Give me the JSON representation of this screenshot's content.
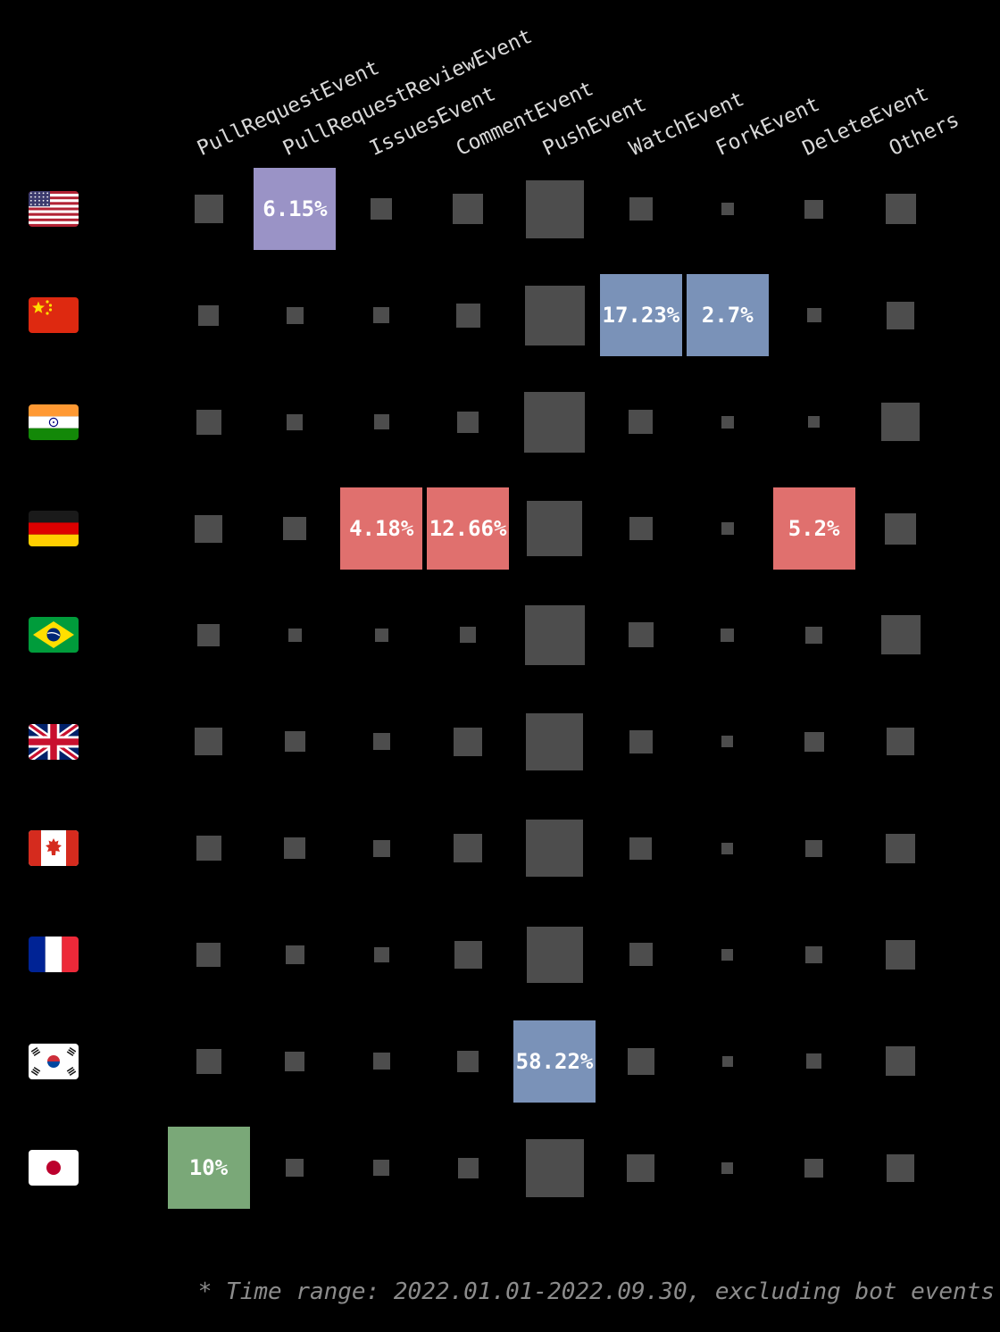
{
  "chart_data": {
    "type": "heatmap",
    "title": "",
    "columns": [
      "PullRequestEvent",
      "PullRequestReviewEvent",
      "IssuesEvent",
      "CommentEvent",
      "PushEvent",
      "WatchEvent",
      "ForkEvent",
      "DeleteEvent",
      "Others"
    ],
    "rows": [
      {
        "country": "United States",
        "flag": "us"
      },
      {
        "country": "China",
        "flag": "cn"
      },
      {
        "country": "India",
        "flag": "in"
      },
      {
        "country": "Germany",
        "flag": "de"
      },
      {
        "country": "Brazil",
        "flag": "br"
      },
      {
        "country": "United Kingdom",
        "flag": "gb"
      },
      {
        "country": "Canada",
        "flag": "ca"
      },
      {
        "country": "France",
        "flag": "fr"
      },
      {
        "country": "South Korea",
        "flag": "kr"
      },
      {
        "country": "Japan",
        "flag": "jp"
      }
    ],
    "cells": [
      [
        {
          "size": 32
        },
        {
          "pct": "6.15%",
          "color": "purple"
        },
        {
          "size": 24
        },
        {
          "size": 34
        },
        {
          "size": 65
        },
        {
          "size": 26
        },
        {
          "size": 14
        },
        {
          "size": 21
        },
        {
          "size": 34
        }
      ],
      [
        {
          "size": 23
        },
        {
          "size": 19
        },
        {
          "size": 18
        },
        {
          "size": 27
        },
        {
          "size": 67
        },
        {
          "pct": "17.23%",
          "color": "blue"
        },
        {
          "pct": "2.7%",
          "color": "blue"
        },
        {
          "size": 16
        },
        {
          "size": 31
        }
      ],
      [
        {
          "size": 28
        },
        {
          "size": 18
        },
        {
          "size": 17
        },
        {
          "size": 24
        },
        {
          "size": 68
        },
        {
          "size": 27
        },
        {
          "size": 14
        },
        {
          "size": 13
        },
        {
          "size": 43
        }
      ],
      [
        {
          "size": 31
        },
        {
          "size": 26
        },
        {
          "pct": "4.18%",
          "color": "red"
        },
        {
          "pct": "12.66%",
          "color": "red"
        },
        {
          "size": 62
        },
        {
          "size": 26
        },
        {
          "size": 14
        },
        {
          "pct": "5.2%",
          "color": "red"
        },
        {
          "size": 35
        }
      ],
      [
        {
          "size": 25
        },
        {
          "size": 15
        },
        {
          "size": 15
        },
        {
          "size": 18
        },
        {
          "size": 67
        },
        {
          "size": 28
        },
        {
          "size": 15
        },
        {
          "size": 19
        },
        {
          "size": 44
        }
      ],
      [
        {
          "size": 31
        },
        {
          "size": 23
        },
        {
          "size": 19
        },
        {
          "size": 32
        },
        {
          "size": 64
        },
        {
          "size": 26
        },
        {
          "size": 13
        },
        {
          "size": 22
        },
        {
          "size": 31
        }
      ],
      [
        {
          "size": 28
        },
        {
          "size": 24
        },
        {
          "size": 19
        },
        {
          "size": 32
        },
        {
          "size": 64
        },
        {
          "size": 25
        },
        {
          "size": 13
        },
        {
          "size": 19
        },
        {
          "size": 33
        }
      ],
      [
        {
          "size": 27
        },
        {
          "size": 21
        },
        {
          "size": 17
        },
        {
          "size": 31
        },
        {
          "size": 63
        },
        {
          "size": 26
        },
        {
          "size": 13
        },
        {
          "size": 19
        },
        {
          "size": 33
        }
      ],
      [
        {
          "size": 28
        },
        {
          "size": 22
        },
        {
          "size": 19
        },
        {
          "size": 24
        },
        {
          "pct": "58.22%",
          "color": "blue"
        },
        {
          "size": 30
        },
        {
          "size": 12
        },
        {
          "size": 17
        },
        {
          "size": 33
        }
      ],
      [
        {
          "pct": "10%",
          "color": "green"
        },
        {
          "size": 20
        },
        {
          "size": 18
        },
        {
          "size": 23
        },
        {
          "size": 65
        },
        {
          "size": 31
        },
        {
          "size": 13
        },
        {
          "size": 21
        },
        {
          "size": 31
        }
      ]
    ],
    "highlight_colors": {
      "purple": "#9a93c6",
      "blue": "#7a92b8",
      "red": "#e0706e",
      "green": "#7aa878"
    },
    "square_color": "#4d4d4d",
    "header_text_color": "#d9d9d9",
    "value_text_color": "#ffffff",
    "background": "#000000",
    "max_cell_size": 92,
    "note": "* Time range: 2022.01.01-2022.09.30, excluding bot events"
  }
}
